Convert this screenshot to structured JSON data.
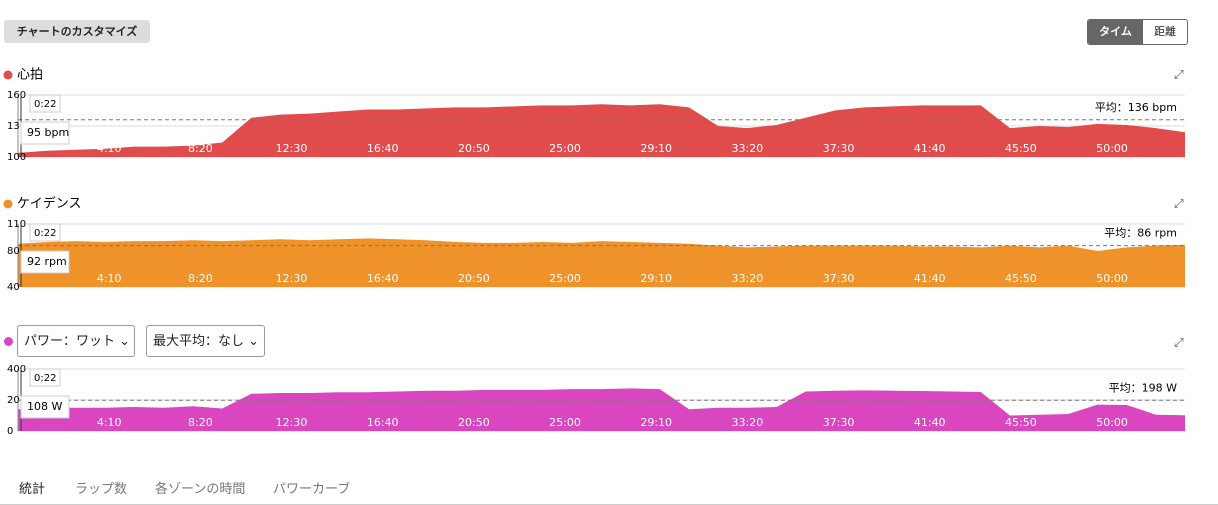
{
  "ui": {
    "customize": "チャートのカスタマイズ",
    "toggle": [
      "タイム",
      "距離"
    ],
    "power_selects": [
      "パワー：ワット",
      "最大平均：なし"
    ],
    "tabs": [
      "統計",
      "ラップ数",
      "各ゾーンの時間",
      "パワーカーブ"
    ]
  },
  "chart_data": [
    {
      "type": "area",
      "title": "心拍",
      "color": "#e04b4b",
      "xlim": [
        0,
        3200
      ],
      "ylim": [
        100,
        160
      ],
      "yticks": [
        100,
        130,
        160
      ],
      "xticks": [
        {
          "value": 250,
          "label": "4:10"
        },
        {
          "value": 500,
          "label": "8:20"
        },
        {
          "value": 750,
          "label": "12:30"
        },
        {
          "value": 1000,
          "label": "16:40"
        },
        {
          "value": 1250,
          "label": "20:50"
        },
        {
          "value": 1500,
          "label": "25:00"
        },
        {
          "value": 1750,
          "label": "29:10"
        },
        {
          "value": 2000,
          "label": "33:20"
        },
        {
          "value": 2250,
          "label": "37:30"
        },
        {
          "value": 2500,
          "label": "41:40"
        },
        {
          "value": 2750,
          "label": "45:50"
        },
        {
          "value": 3000,
          "label": "50:00"
        }
      ],
      "x": [
        0,
        80,
        160,
        240,
        320,
        400,
        480,
        560,
        640,
        720,
        800,
        880,
        960,
        1040,
        1120,
        1200,
        1280,
        1360,
        1440,
        1520,
        1600,
        1680,
        1760,
        1840,
        1920,
        2000,
        2080,
        2160,
        2240,
        2320,
        2400,
        2480,
        2560,
        2640,
        2720,
        2800,
        2880,
        2960,
        3040,
        3120,
        3200
      ],
      "values": [
        104,
        106,
        107,
        108,
        110,
        110,
        111,
        114,
        138,
        141,
        142,
        144,
        146,
        146,
        147,
        148,
        148,
        149,
        150,
        150,
        151,
        150,
        151,
        148,
        130,
        128,
        131,
        138,
        145,
        148,
        149,
        150,
        150,
        150,
        128,
        130,
        129,
        132,
        131,
        128,
        124
      ],
      "average": {
        "value": 136,
        "label": "平均：136 bpm"
      },
      "cursor": {
        "time": "0:22",
        "value": "95 bpm"
      }
    },
    {
      "type": "area",
      "title": "ケイデンス",
      "color": "#f0922a",
      "xlim": [
        0,
        3200
      ],
      "ylim": [
        40,
        110
      ],
      "yticks": [
        40,
        80,
        110
      ],
      "xticks": [
        {
          "value": 250,
          "label": "4:10"
        },
        {
          "value": 500,
          "label": "8:20"
        },
        {
          "value": 750,
          "label": "12:30"
        },
        {
          "value": 1000,
          "label": "16:40"
        },
        {
          "value": 1250,
          "label": "20:50"
        },
        {
          "value": 1500,
          "label": "25:00"
        },
        {
          "value": 1750,
          "label": "29:10"
        },
        {
          "value": 2000,
          "label": "33:20"
        },
        {
          "value": 2250,
          "label": "37:30"
        },
        {
          "value": 2500,
          "label": "41:40"
        },
        {
          "value": 2750,
          "label": "45:50"
        },
        {
          "value": 3000,
          "label": "50:00"
        }
      ],
      "x": [
        0,
        80,
        160,
        240,
        320,
        400,
        480,
        560,
        640,
        720,
        800,
        880,
        960,
        1040,
        1120,
        1200,
        1280,
        1360,
        1440,
        1520,
        1600,
        1680,
        1760,
        1840,
        1920,
        2000,
        2080,
        2160,
        2240,
        2320,
        2400,
        2480,
        2560,
        2640,
        2720,
        2800,
        2880,
        2960,
        3040,
        3120,
        3200
      ],
      "values": [
        88,
        90,
        91,
        90,
        91,
        91,
        92,
        91,
        92,
        93,
        92,
        93,
        94,
        93,
        92,
        90,
        89,
        89,
        90,
        89,
        91,
        90,
        89,
        88,
        86,
        84,
        85,
        86,
        86,
        86,
        86,
        85,
        85,
        84,
        86,
        84,
        86,
        80,
        84,
        86,
        87
      ],
      "average": {
        "value": 86,
        "label": "平均：86 rpm"
      },
      "cursor": {
        "time": "0:22",
        "value": "92 rpm"
      }
    },
    {
      "type": "area",
      "color": "#d946c0",
      "xlim": [
        0,
        3200
      ],
      "ylim": [
        0,
        400
      ],
      "yticks": [
        0,
        200,
        400
      ],
      "xticks": [
        {
          "value": 250,
          "label": "4:10"
        },
        {
          "value": 500,
          "label": "8:20"
        },
        {
          "value": 750,
          "label": "12:30"
        },
        {
          "value": 1000,
          "label": "16:40"
        },
        {
          "value": 1250,
          "label": "20:50"
        },
        {
          "value": 1500,
          "label": "25:00"
        },
        {
          "value": 1750,
          "label": "29:10"
        },
        {
          "value": 2000,
          "label": "33:20"
        },
        {
          "value": 2250,
          "label": "37:30"
        },
        {
          "value": 2500,
          "label": "41:40"
        },
        {
          "value": 2750,
          "label": "45:50"
        },
        {
          "value": 3000,
          "label": "50:00"
        }
      ],
      "x": [
        0,
        80,
        160,
        240,
        320,
        400,
        480,
        560,
        640,
        720,
        800,
        880,
        960,
        1040,
        1120,
        1200,
        1280,
        1360,
        1440,
        1520,
        1600,
        1680,
        1760,
        1840,
        1920,
        2000,
        2080,
        2160,
        2240,
        2320,
        2400,
        2480,
        2560,
        2640,
        2720,
        2800,
        2880,
        2960,
        3040,
        3120,
        3200
      ],
      "values": [
        140,
        150,
        150,
        150,
        155,
        150,
        160,
        145,
        240,
        245,
        245,
        250,
        250,
        255,
        260,
        260,
        265,
        265,
        265,
        270,
        270,
        275,
        270,
        140,
        150,
        150,
        155,
        255,
        260,
        262,
        260,
        258,
        255,
        252,
        100,
        105,
        110,
        170,
        168,
        105,
        102
      ],
      "average": {
        "value": 198,
        "label": "平均：198 W"
      },
      "cursor": {
        "time": "0:22",
        "value": "108 W"
      }
    }
  ]
}
